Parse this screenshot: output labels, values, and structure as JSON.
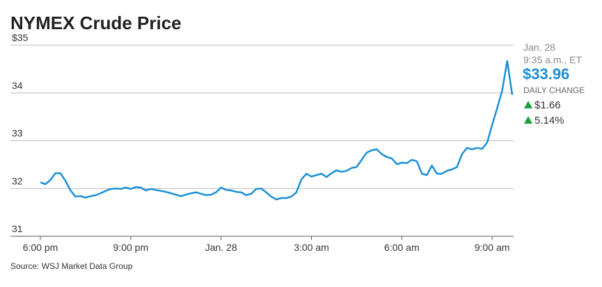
{
  "chart_data": {
    "type": "line",
    "title": "NYMEX Crude Price",
    "source": "Source: WSJ Market Data Group",
    "categories": [
      "6:00 pm",
      null,
      null,
      null,
      null,
      null,
      null,
      null,
      null,
      null,
      null,
      null,
      null,
      null,
      null,
      null,
      null,
      null,
      "9:00 pm",
      null,
      null,
      null,
      null,
      null,
      null,
      null,
      null,
      null,
      null,
      null,
      null,
      null,
      null,
      null,
      null,
      null,
      "Jan. 28",
      null,
      null,
      null,
      null,
      null,
      null,
      null,
      null,
      null,
      null,
      null,
      null,
      null,
      null,
      null,
      null,
      null,
      "3:00 am",
      null,
      null,
      null,
      null,
      null,
      null,
      null,
      null,
      null,
      null,
      null,
      null,
      null,
      null,
      null,
      null,
      null,
      "6:00 am",
      null,
      null,
      null,
      null,
      null,
      null,
      null,
      null,
      null,
      null,
      null,
      null,
      null,
      null,
      null,
      null,
      null,
      "9:00 am",
      null,
      null,
      null,
      null
    ],
    "series": [
      {
        "name": "NYMEX Crude",
        "color": "#1a8fd6",
        "values": [
          32.13,
          32.09,
          32.18,
          32.32,
          32.32,
          32.16,
          31.96,
          31.83,
          31.84,
          31.81,
          31.84,
          31.86,
          31.9,
          31.95,
          31.99,
          32.0,
          31.99,
          32.02,
          31.99,
          32.03,
          32.02,
          31.96,
          31.99,
          31.97,
          31.95,
          31.93,
          31.9,
          31.87,
          31.84,
          31.87,
          31.9,
          31.92,
          31.89,
          31.86,
          31.87,
          31.92,
          32.02,
          31.97,
          31.96,
          31.93,
          31.92,
          31.86,
          31.89,
          31.99,
          32.0,
          31.92,
          31.83,
          31.77,
          31.8,
          31.8,
          31.83,
          31.92,
          32.19,
          32.31,
          32.25,
          32.28,
          32.31,
          32.24,
          32.32,
          32.38,
          32.35,
          32.37,
          32.43,
          32.45,
          32.6,
          32.75,
          32.8,
          32.82,
          32.72,
          32.66,
          32.63,
          32.51,
          32.54,
          32.53,
          32.6,
          32.57,
          32.31,
          32.28,
          32.48,
          32.31,
          32.31,
          32.37,
          32.4,
          32.45,
          32.72,
          32.85,
          32.82,
          32.85,
          32.83,
          32.96,
          33.33,
          33.68,
          34.05,
          34.67,
          33.96
        ]
      }
    ],
    "ylim": [
      31,
      35
    ],
    "yticks": [
      31,
      32,
      33,
      34,
      {
        "value": 35,
        "label": "$35"
      }
    ],
    "grid": true,
    "annotation": {
      "date": "Jan. 28",
      "time": "9:35 a.m., ET",
      "price": "$33.96",
      "change_label": "DAILY CHANGE",
      "change": "$1.66",
      "change_pct": "5.14%"
    }
  }
}
